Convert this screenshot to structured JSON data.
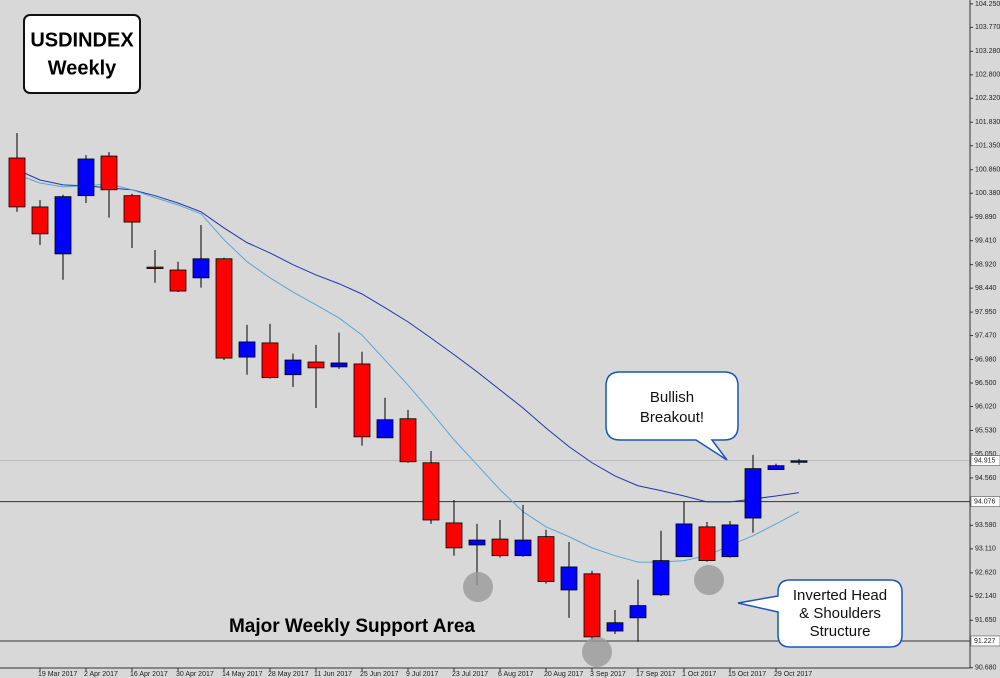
{
  "chart_data": {
    "type": "candlestick",
    "title": "USDINDEX",
    "subtitle": "Weekly",
    "categories": [
      null,
      "19 Mar 2017",
      null,
      "2 Apr 2017",
      null,
      "16 Apr 2017",
      null,
      "30 Apr 2017",
      null,
      "14 May 2017",
      null,
      "28 May 2017",
      null,
      "11 Jun 2017",
      null,
      "25 Jun 2017",
      null,
      "9 Jul 2017",
      null,
      "23 Jul 2017",
      null,
      "6 Aug 2017",
      null,
      "20 Aug 2017",
      null,
      "3 Sep 2017",
      null,
      "17 Sep 2017",
      null,
      "1 Oct 2017",
      null,
      "15 Oct 2017",
      null,
      "29 Oct 2017",
      null
    ],
    "open": [
      101.1,
      100.1,
      99.14,
      100.33,
      101.14,
      100.33,
      98.87,
      98.81,
      98.65,
      99.04,
      97.03,
      97.32,
      96.67,
      96.93,
      96.83,
      96.89,
      95.38,
      95.77,
      94.87,
      93.64,
      93.19,
      93.31,
      92.97,
      93.36,
      92.27,
      92.6,
      91.43,
      91.7,
      92.17,
      92.95,
      93.56,
      92.95,
      93.74,
      94.73,
      94.89
    ],
    "high": [
      101.61,
      100.24,
      100.35,
      101.16,
      101.22,
      100.37,
      99.22,
      98.98,
      99.73,
      99.06,
      97.69,
      97.71,
      97.1,
      97.28,
      97.53,
      97.14,
      96.2,
      95.95,
      95.11,
      94.11,
      93.62,
      93.7,
      94.01,
      93.5,
      93.25,
      92.66,
      91.86,
      92.48,
      93.48,
      94.07,
      93.66,
      93.68,
      95.03,
      94.85,
      94.95
    ],
    "low": [
      100.0,
      99.32,
      98.61,
      100.18,
      99.88,
      99.26,
      98.55,
      98.36,
      98.45,
      96.97,
      96.67,
      96.59,
      96.42,
      95.99,
      96.79,
      95.22,
      95.38,
      94.87,
      93.62,
      92.97,
      92.37,
      92.93,
      92.95,
      92.4,
      91.7,
      91.25,
      91.37,
      91.21,
      92.15,
      92.95,
      92.85,
      92.93,
      93.44,
      94.73,
      94.83
    ],
    "close": [
      100.1,
      99.55,
      100.31,
      101.08,
      100.45,
      99.79,
      98.85,
      98.38,
      99.04,
      97.01,
      97.34,
      96.61,
      96.97,
      96.81,
      96.91,
      95.4,
      95.75,
      94.89,
      93.7,
      93.13,
      93.29,
      92.97,
      93.29,
      92.44,
      92.74,
      91.31,
      91.6,
      91.95,
      92.87,
      93.62,
      92.87,
      93.6,
      94.75,
      94.81,
      94.91
    ],
    "up_color": "#0000ff",
    "down_color": "#ff0000",
    "series": [
      {
        "color": "#2633a8",
        "values": [
          100.86,
          100.65,
          100.55,
          100.53,
          100.49,
          100.45,
          100.33,
          100.18,
          100.0,
          99.67,
          99.37,
          99.16,
          98.92,
          98.71,
          98.53,
          98.32,
          98.04,
          97.75,
          97.42,
          97.08,
          96.73,
          96.36,
          95.99,
          95.58,
          95.2,
          94.87,
          94.6,
          94.4,
          94.3,
          94.19,
          94.07,
          94.07,
          94.13,
          94.19,
          94.26
        ]
      },
      {
        "color": "#5aa6d6",
        "values": [
          100.76,
          100.59,
          100.51,
          100.53,
          100.57,
          100.45,
          100.29,
          100.14,
          99.96,
          99.43,
          98.98,
          98.65,
          98.36,
          98.1,
          97.83,
          97.48,
          96.97,
          96.46,
          95.91,
          95.34,
          94.83,
          94.32,
          93.87,
          93.56,
          93.36,
          93.13,
          92.97,
          92.84,
          92.84,
          92.87,
          92.97,
          93.18,
          93.38,
          93.62,
          93.87
        ]
      }
    ],
    "ylim": [
      90.47,
      104.33
    ],
    "yticks": [
      {
        "value": 104.25,
        "label": "104.250"
      },
      {
        "value": 103.77,
        "label": "103.770"
      },
      {
        "value": 103.28,
        "label": "103.280"
      },
      {
        "value": 102.8,
        "label": "102.800"
      },
      {
        "value": 102.32,
        "label": "102.320"
      },
      {
        "value": 101.83,
        "label": "101.830"
      },
      {
        "value": 101.35,
        "label": "101.350"
      },
      {
        "value": 100.86,
        "label": "100.860"
      },
      {
        "value": 100.38,
        "label": "100.380"
      },
      {
        "value": 99.89,
        "label": "99.890"
      },
      {
        "value": 99.41,
        "label": "99.410"
      },
      {
        "value": 98.92,
        "label": "98.920"
      },
      {
        "value": 98.44,
        "label": "98.440"
      },
      {
        "value": 97.95,
        "label": "97.950"
      },
      {
        "value": 97.47,
        "label": "97.470"
      },
      {
        "value": 96.98,
        "label": "96.980"
      },
      {
        "value": 96.5,
        "label": "96.500"
      },
      {
        "value": 96.02,
        "label": "96.020"
      },
      {
        "value": 95.53,
        "label": "95.530"
      },
      {
        "value": 95.05,
        "label": "95.050"
      },
      {
        "value": 94.56,
        "label": "94.560"
      },
      {
        "value": 93.59,
        "label": "93.590"
      },
      {
        "value": 93.11,
        "label": "93.110"
      },
      {
        "value": 92.62,
        "label": "92.620"
      },
      {
        "value": 92.14,
        "label": "92.140"
      },
      {
        "value": 91.65,
        "label": "91.650"
      },
      {
        "value": 90.68,
        "label": "90.680"
      }
    ],
    "levels": [
      94.076,
      91.227
    ],
    "last_price": 94.915,
    "annotations": {
      "bubble": [
        "Bullish",
        "Breakout!"
      ],
      "box": [
        "Inverted Head",
        "& Shoulders",
        "Structure"
      ],
      "support": "Major Weekly Support Area"
    }
  }
}
